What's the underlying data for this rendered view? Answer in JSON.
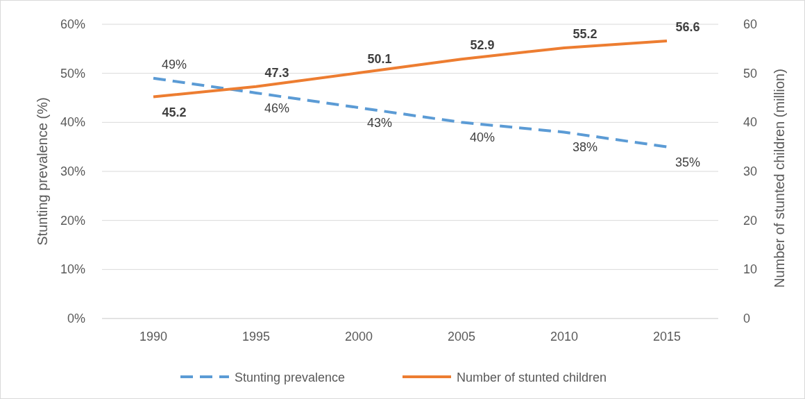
{
  "chart_data": {
    "type": "line",
    "categories": [
      "1990",
      "1995",
      "2000",
      "2005",
      "2010",
      "2015"
    ],
    "ylabel": "Stunting prevalence (%)",
    "y2label": "Number of stunted children (million)",
    "ylim": [
      0,
      60
    ],
    "yticks": [
      {
        "value": 0,
        "label": "0%"
      },
      {
        "value": 10,
        "label": "10%"
      },
      {
        "value": 20,
        "label": "20%"
      },
      {
        "value": 30,
        "label": "30%"
      },
      {
        "value": 40,
        "label": "40%"
      },
      {
        "value": 50,
        "label": "50%"
      },
      {
        "value": 60,
        "label": "60%"
      }
    ],
    "y2lim": [
      0,
      60
    ],
    "y2ticks": [
      0,
      10,
      20,
      30,
      40,
      50,
      60
    ],
    "series": [
      {
        "name": "Stunting prevalence",
        "color": "#5b9bd5",
        "line_style": "dashed",
        "values": [
          49,
          46,
          43,
          40,
          38,
          35
        ],
        "value_labels": [
          "49%",
          "46%",
          "43%",
          "40%",
          "38%",
          "35%"
        ]
      },
      {
        "name": "Number of stunted children",
        "color": "#ed7d31",
        "line_style": "solid",
        "axis": "y2",
        "values": [
          45.2,
          47.3,
          50.1,
          52.9,
          55.2,
          56.6
        ],
        "value_labels": [
          "45.2",
          "47.3",
          "50.1",
          "52.9",
          "55.2",
          "56.6"
        ]
      }
    ],
    "grid": "y",
    "legend": "bottom",
    "marker": "none"
  }
}
